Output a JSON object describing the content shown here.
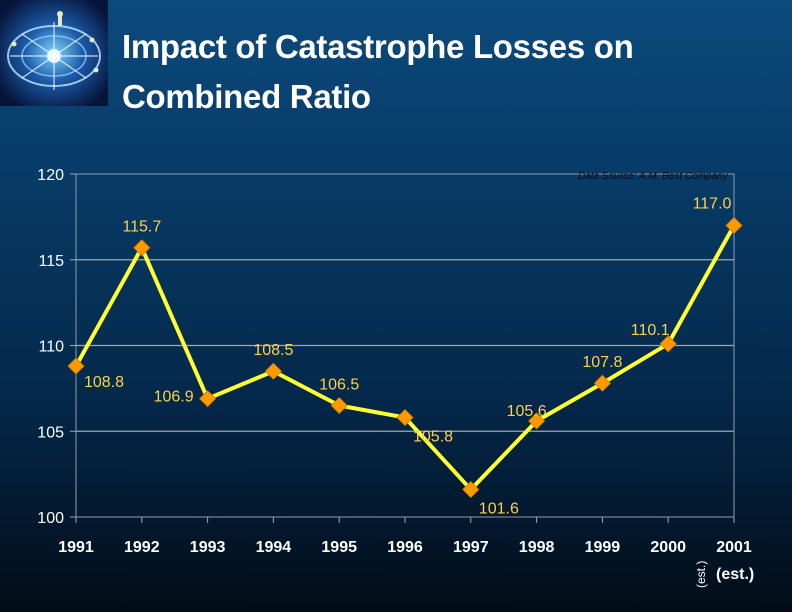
{
  "slide": {
    "title_line1": "Impact of Catastrophe Losses on",
    "title_line2": "Combined Ratio",
    "logo_icon": "compass-rose-logo-icon"
  },
  "colors": {
    "line": "#ffff33",
    "marker": "#ff9900",
    "value_label": "#ffd14a",
    "axis_text": "#ffffff",
    "grid": "#9aa8b8"
  },
  "chart_data": {
    "type": "line",
    "title": "",
    "source_note": "Data Source: A.M. Best Company",
    "xlabel": "",
    "ylabel": "",
    "categories": [
      "1991",
      "1992",
      "1993",
      "1994",
      "1995",
      "1996",
      "1997",
      "1998",
      "1999",
      "2000",
      "2001"
    ],
    "category_note": "(est.)",
    "category_note_rotated": "(est.)",
    "ylim": [
      100,
      120
    ],
    "yticks": [
      "100",
      "105",
      "110",
      "115",
      "120"
    ],
    "grid": true,
    "series": [
      {
        "values": [
          108.8,
          115.7,
          106.9,
          108.5,
          106.5,
          105.8,
          101.6,
          105.6,
          107.8,
          110.1,
          117.0
        ],
        "labels": [
          "108.8",
          "115.7",
          "106.9",
          "108.5",
          "106.5",
          "105.8",
          "101.6",
          "105.6",
          "107.8",
          "110.1",
          "117.0"
        ]
      }
    ]
  }
}
